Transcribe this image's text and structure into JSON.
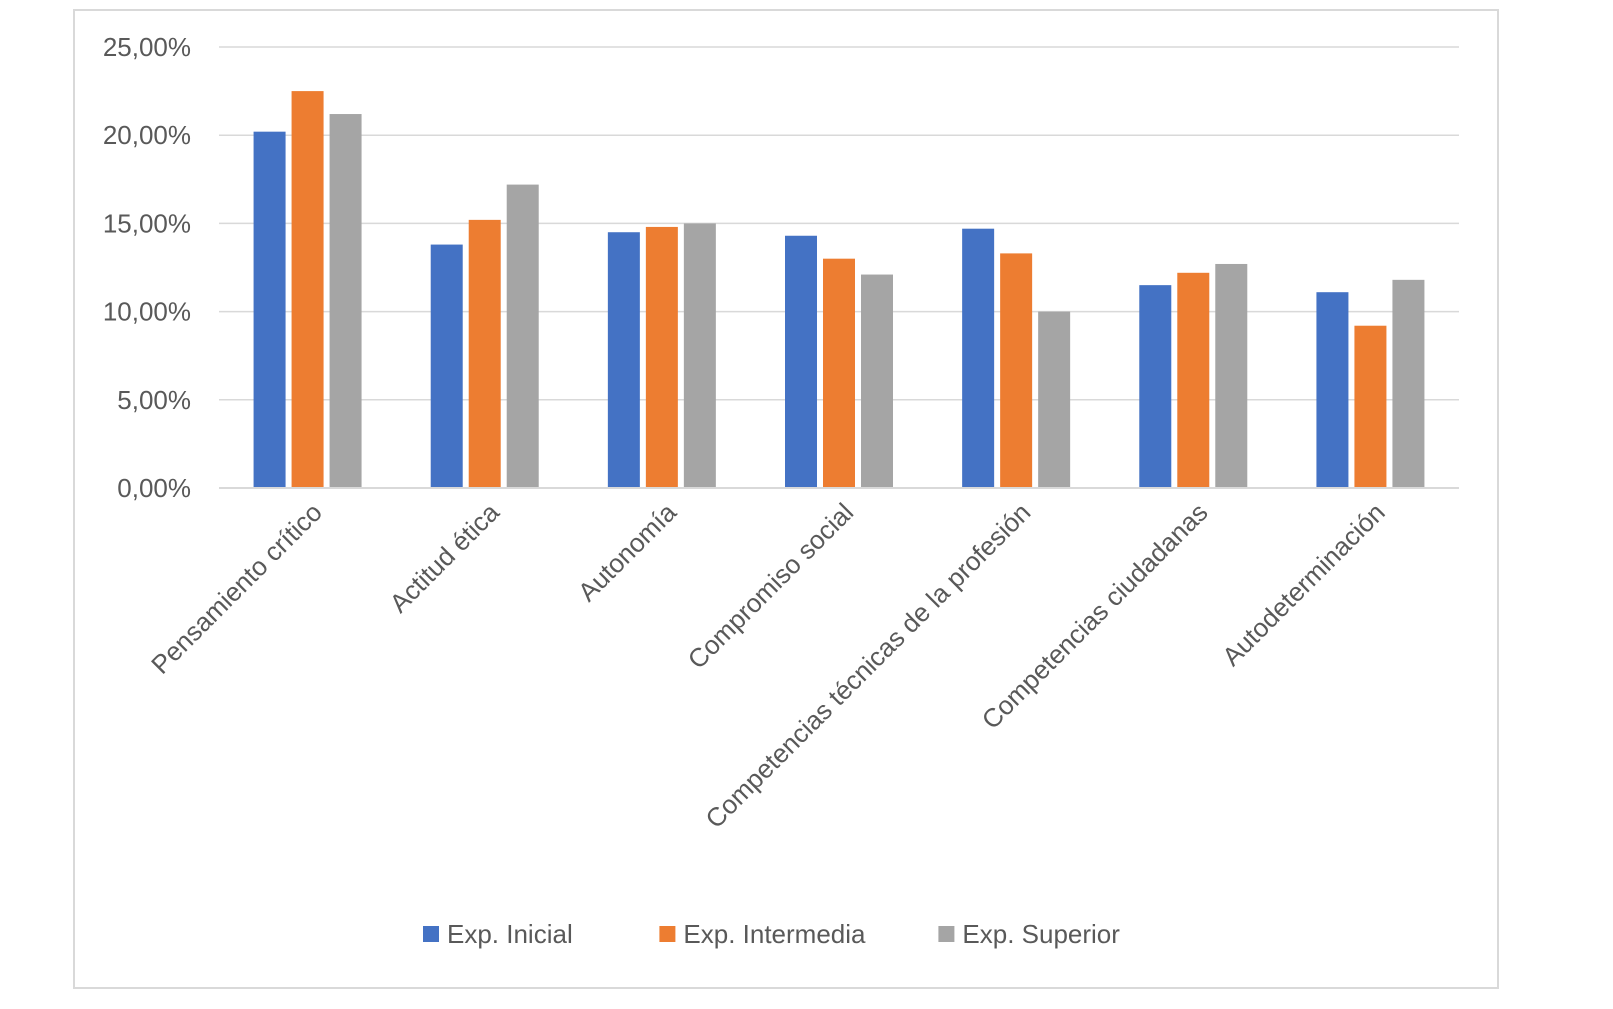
{
  "chart_data": {
    "type": "bar",
    "title": "",
    "xlabel": "",
    "ylabel": "",
    "categories": [
      "Pensamiento crítico",
      "Actitud ética",
      "Autonomía",
      "Compromiso social",
      "Competencias técnicas de la profesión",
      "Competencias ciudadanas",
      "Autodeterminación"
    ],
    "series": [
      {
        "name": "Exp. Inicial",
        "color": "#4472C4",
        "values": [
          20.2,
          13.8,
          14.5,
          14.3,
          14.7,
          11.5,
          11.1
        ]
      },
      {
        "name": "Exp. Intermedia",
        "color": "#ED7D31",
        "values": [
          22.5,
          15.2,
          14.8,
          13.0,
          13.3,
          12.2,
          9.2
        ]
      },
      {
        "name": "Exp. Superior",
        "color": "#A5A5A5",
        "values": [
          21.2,
          17.2,
          15.0,
          12.1,
          10.0,
          12.7,
          11.8
        ]
      }
    ],
    "ylim": [
      0,
      25
    ],
    "yticks": [
      0,
      5,
      10,
      15,
      20,
      25
    ],
    "ytick_labels": [
      "0,00%",
      "5,00%",
      "10,00%",
      "15,00%",
      "20,00%",
      "25,00%"
    ],
    "grid": true,
    "legend_position": "bottom"
  }
}
